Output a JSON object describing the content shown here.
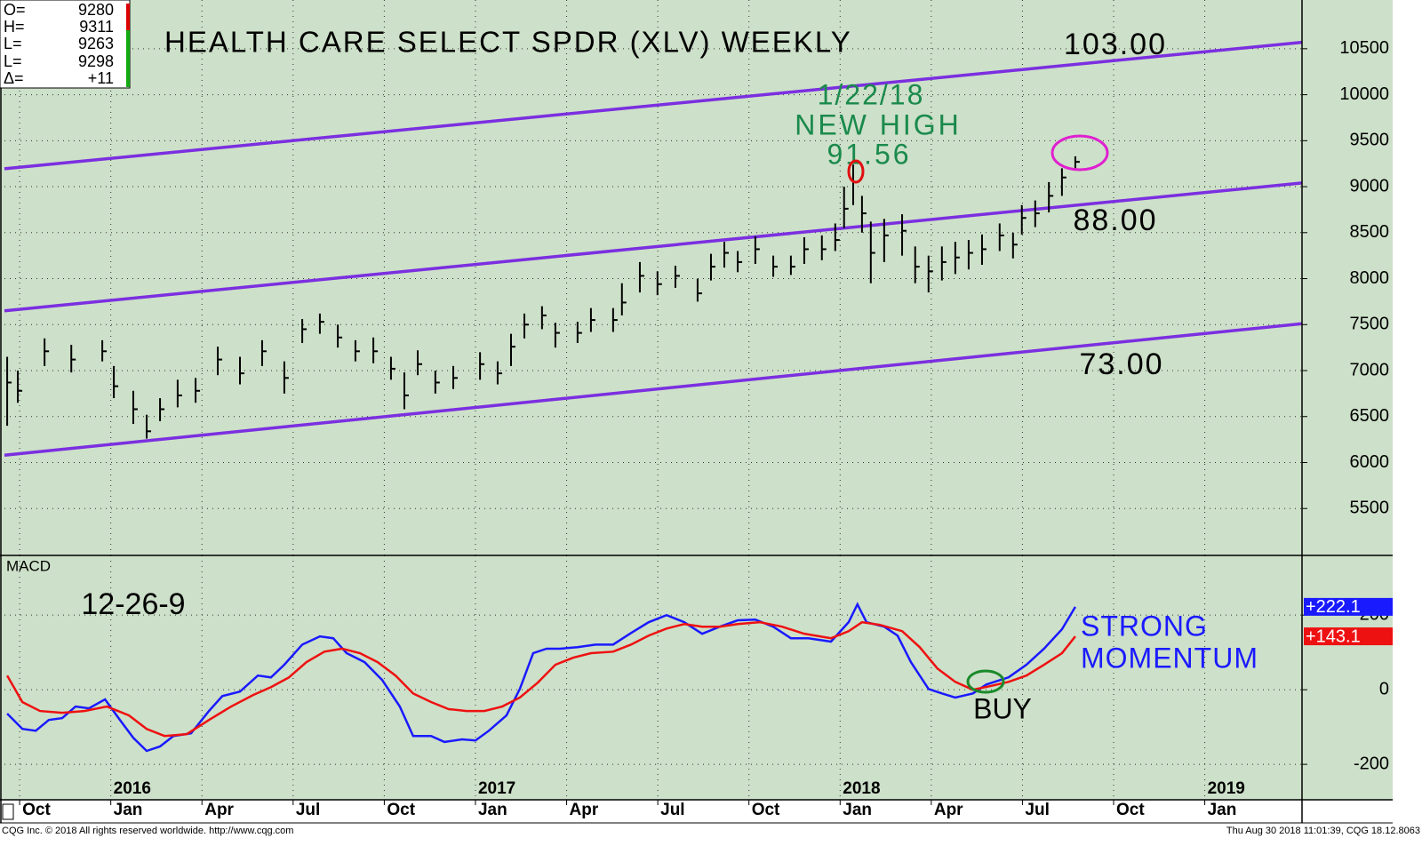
{
  "quote_box": {
    "rows": [
      {
        "label": "O=",
        "value": "9280"
      },
      {
        "label": "H=",
        "value": "9311"
      },
      {
        "label": "L=",
        "value": "9263"
      },
      {
        "label": "L=",
        "value": "9298"
      },
      {
        "label": "Δ=",
        "value": "+11"
      }
    ]
  },
  "chart_data": [
    {
      "type": "ohlc",
      "title": "HEALTH CARE SELECT SPDR (XLV) WEEKLY",
      "xlim": [
        -0.5,
        42.2
      ],
      "ylim": [
        4990,
        11030
      ],
      "yticks": [
        5500,
        6000,
        6500,
        7000,
        7500,
        8000,
        8500,
        9000,
        9500,
        10000,
        10500
      ],
      "grid": true,
      "color": "#000000",
      "x": [
        -0.41,
        -0.06,
        0.82,
        1.7,
        2.72,
        3.1,
        3.74,
        4.18,
        4.62,
        5.2,
        5.79,
        6.52,
        7.25,
        7.98,
        8.71,
        9.3,
        9.88,
        10.47,
        11.05,
        11.64,
        12.22,
        12.66,
        13.1,
        13.68,
        14.27,
        15.15,
        15.73,
        16.17,
        16.61,
        17.19,
        17.63,
        18.36,
        18.8,
        19.53,
        19.82,
        20.41,
        20.99,
        21.58,
        22.31,
        22.75,
        23.19,
        23.63,
        24.21,
        24.8,
        25.38,
        25.82,
        26.4,
        26.84,
        27.13,
        27.43,
        27.72,
        28.01,
        28.45,
        29.04,
        29.47,
        29.91,
        30.35,
        30.79,
        31.23,
        31.67,
        32.25,
        32.69,
        32.98,
        33.42,
        33.87,
        34.3,
        34.74
      ],
      "high": [
        7150,
        7000,
        7350,
        7280,
        7330,
        7050,
        6780,
        6520,
        6700,
        6900,
        6920,
        7260,
        7150,
        7330,
        7100,
        7560,
        7620,
        7500,
        7330,
        7360,
        7150,
        6980,
        7220,
        7000,
        7050,
        7200,
        7100,
        7400,
        7620,
        7700,
        7520,
        7530,
        7680,
        7680,
        7950,
        8180,
        8080,
        8140,
        8000,
        8270,
        8400,
        8300,
        8460,
        8250,
        8250,
        8450,
        8470,
        8600,
        9000,
        9240,
        8900,
        8620,
        8650,
        8700,
        8350,
        8250,
        8350,
        8400,
        8420,
        8480,
        8600,
        8500,
        8800,
        8850,
        9050,
        9200,
        9330
      ],
      "low": [
        6400,
        6650,
        7050,
        6980,
        7100,
        6700,
        6420,
        6260,
        6450,
        6600,
        6650,
        6950,
        6850,
        7050,
        6750,
        7300,
        7400,
        7250,
        7100,
        7080,
        6900,
        6580,
        6950,
        6750,
        6800,
        6900,
        6850,
        7050,
        7350,
        7450,
        7250,
        7300,
        7420,
        7420,
        7600,
        7850,
        7820,
        7900,
        7750,
        7980,
        8120,
        8070,
        8160,
        8020,
        8040,
        8160,
        8200,
        8300,
        8550,
        8800,
        8500,
        7950,
        8180,
        8250,
        7950,
        7850,
        7980,
        8050,
        8100,
        8150,
        8300,
        8220,
        8480,
        8560,
        8720,
        8900,
        9180
      ],
      "close": [
        6870,
        6780,
        7210,
        7120,
        7210,
        6830,
        6580,
        6340,
        6580,
        6730,
        6780,
        7120,
        6970,
        7210,
        6920,
        7450,
        7530,
        7360,
        7210,
        7210,
        7020,
        6730,
        7070,
        6870,
        6920,
        7070,
        6970,
        7260,
        7500,
        7600,
        7410,
        7410,
        7550,
        7550,
        7740,
        8030,
        7940,
        8030,
        7840,
        8130,
        8280,
        8180,
        8320,
        8130,
        8130,
        8320,
        8320,
        8420,
        8760,
        9050,
        8710,
        8280,
        8470,
        8520,
        8130,
        8080,
        8180,
        8230,
        8280,
        8320,
        8470,
        8370,
        8660,
        8710,
        8900,
        9100,
        9270
      ],
      "lines": [
        {
          "color": "#7b2fe0",
          "x": [
            -0.5,
            42.2
          ],
          "values": [
            9195,
            10570
          ]
        },
        {
          "color": "#7b2fe0",
          "x": [
            -0.5,
            42.2
          ],
          "values": [
            7650,
            9040
          ]
        },
        {
          "color": "#7b2fe0",
          "x": [
            -0.5,
            42.2
          ],
          "values": [
            6080,
            7510
          ]
        }
      ],
      "level_labels": [
        "103.00",
        "88.00",
        "73.00"
      ],
      "high_note": [
        "1/22/18",
        "NEW HIGH",
        "91.56"
      ]
    },
    {
      "type": "line",
      "title": "MACD",
      "subtitle": "12-26-9",
      "xlim": [
        -0.5,
        42.2
      ],
      "ylim": [
        -295,
        360
      ],
      "yticks": [
        -200,
        0,
        200
      ],
      "grid": true,
      "xticks": [
        {
          "value": 0,
          "label": "Oct"
        },
        {
          "value": 3,
          "label": "Jan"
        },
        {
          "value": 6,
          "label": "Apr"
        },
        {
          "value": 9,
          "label": "Jul"
        },
        {
          "value": 12,
          "label": "Oct"
        },
        {
          "value": 15,
          "label": "Jan"
        },
        {
          "value": 18,
          "label": "Apr"
        },
        {
          "value": 21,
          "label": "Jul"
        },
        {
          "value": 24,
          "label": "Oct"
        },
        {
          "value": 27,
          "label": "Jan"
        },
        {
          "value": 30,
          "label": "Apr"
        },
        {
          "value": 33,
          "label": "Jul"
        },
        {
          "value": 36,
          "label": "Oct"
        },
        {
          "value": 39,
          "label": "Jan"
        }
      ],
      "year_labels": [
        {
          "value": 3,
          "label": "2016"
        },
        {
          "value": 15,
          "label": "2017"
        },
        {
          "value": 27,
          "label": "2018"
        },
        {
          "value": 39,
          "label": "2019"
        }
      ],
      "series": [
        {
          "color": "#1a1aff",
          "x": [
            -0.41,
            0.09,
            0.53,
            0.96,
            1.4,
            1.84,
            2.28,
            2.81,
            3.3,
            3.74,
            4.18,
            4.62,
            5.06,
            5.64,
            6.23,
            6.67,
            7.25,
            7.84,
            8.27,
            8.71,
            9.3,
            9.88,
            10.32,
            10.76,
            11.35,
            11.93,
            12.51,
            12.95,
            13.54,
            13.98,
            14.56,
            15.0,
            15.44,
            16.02,
            16.46,
            16.9,
            17.34,
            17.78,
            18.36,
            18.95,
            19.53,
            20.12,
            20.7,
            21.29,
            21.87,
            22.46,
            23.04,
            23.63,
            24.21,
            24.8,
            25.38,
            25.96,
            26.7,
            27.28,
            27.57,
            27.87,
            28.45,
            28.89,
            29.33,
            29.91,
            30.35,
            30.79,
            31.37,
            31.81,
            32.54,
            33.13,
            33.71,
            34.3,
            34.74
          ],
          "values": [
            -64,
            -105,
            -110,
            -81,
            -76,
            -45,
            -50,
            -26,
            -81,
            -129,
            -164,
            -152,
            -124,
            -117,
            -57,
            -17,
            -5,
            38,
            33,
            67,
            121,
            143,
            138,
            98,
            74,
            26,
            -45,
            -124,
            -124,
            -140,
            -133,
            -136,
            -110,
            -69,
            2,
            98,
            110,
            110,
            114,
            121,
            121,
            152,
            181,
            200,
            181,
            150,
            169,
            186,
            188,
            169,
            138,
            138,
            129,
            181,
            229,
            181,
            169,
            145,
            74,
            2,
            -10,
            -21,
            -10,
            14,
            33,
            67,
            110,
            162,
            222.1
          ],
          "value_labels": {
            "68": "+222.1"
          }
        },
        {
          "color": "#ee1111",
          "x": [
            -0.41,
            0.09,
            0.67,
            1.4,
            2.13,
            2.87,
            3.6,
            4.18,
            4.77,
            5.5,
            6.23,
            6.96,
            7.69,
            8.27,
            8.86,
            9.44,
            10.03,
            10.61,
            11.2,
            11.78,
            12.37,
            12.95,
            13.54,
            14.12,
            14.71,
            15.29,
            15.88,
            16.46,
            17.05,
            17.63,
            18.22,
            18.8,
            19.53,
            20.12,
            20.7,
            21.29,
            21.87,
            22.46,
            23.04,
            23.63,
            24.36,
            25.09,
            25.82,
            26.7,
            27.28,
            27.72,
            28.3,
            29.04,
            29.62,
            30.2,
            30.79,
            31.37,
            31.96,
            32.54,
            33.13,
            33.71,
            34.3,
            34.74
          ],
          "values": [
            38,
            -33,
            -57,
            -62,
            -57,
            -45,
            -69,
            -105,
            -124,
            -119,
            -81,
            -45,
            -14,
            7,
            33,
            74,
            102,
            110,
            98,
            74,
            38,
            -10,
            -33,
            -52,
            -57,
            -57,
            -45,
            -21,
            19,
            67,
            86,
            98,
            102,
            121,
            145,
            164,
            176,
            169,
            169,
            176,
            181,
            169,
            150,
            138,
            157,
            181,
            174,
            157,
            114,
            57,
            21,
            0,
            10,
            21,
            38,
            67,
            98,
            143.1
          ],
          "value_labels": {
            "57": "+143.1"
          }
        }
      ],
      "notes": [
        "STRONG",
        "MOMENTUM"
      ],
      "buy": "BUY"
    }
  ],
  "footer": {
    "left": "CQG Inc. © 2018 All rights reserved worldwide. http://www.cqg.com",
    "right": "Thu Aug 30 2018 11:01:39, CQG 18.12.8063"
  }
}
